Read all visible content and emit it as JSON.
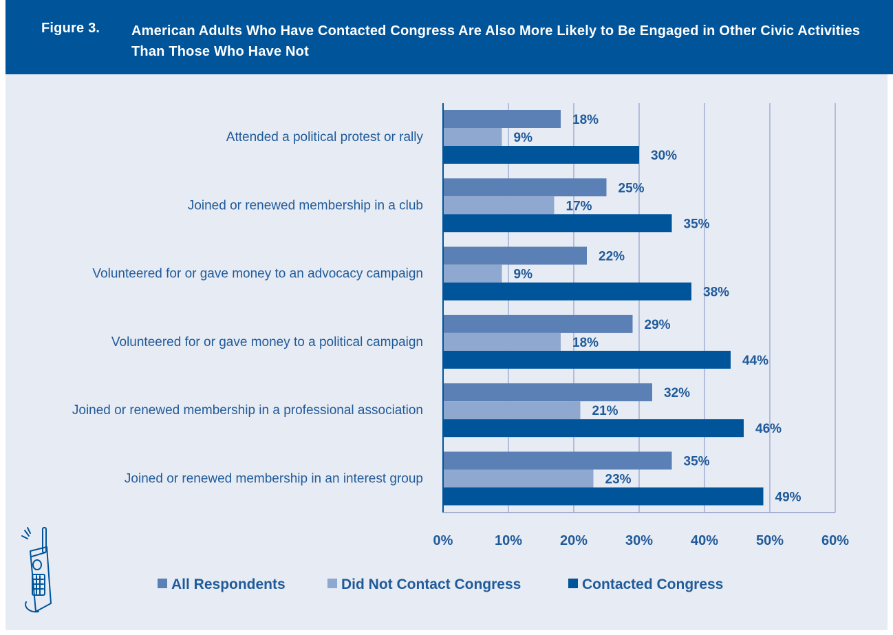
{
  "figure": {
    "label": "Figure 3.",
    "title": "American Adults Who Have Contacted Congress Are Also More Likely to Be Engaged in Other Civic Activities Than Those Who Have Not"
  },
  "colors": {
    "header_bg": "#00549a",
    "panel_bg": "#e7ebf3",
    "text": "#1f5a9a",
    "series": [
      "#5b80b6",
      "#8fa8d0",
      "#00549a"
    ]
  },
  "icons": [
    "phone-icon"
  ],
  "chart_data": {
    "type": "bar",
    "orientation": "horizontal",
    "categories": [
      "Attended a political protest or rally",
      "Joined or renewed membership in a club",
      "Volunteered for or gave money to an advocacy campaign",
      "Volunteered for or gave money to a political campaign",
      "Joined or renewed membership in a professional association",
      "Joined or renewed membership in an interest group"
    ],
    "series": [
      {
        "name": "All Respondents",
        "values": [
          18,
          25,
          22,
          29,
          32,
          35
        ],
        "labels": [
          "18%",
          "25%",
          "22%",
          "29%",
          "32%",
          "35%"
        ]
      },
      {
        "name": "Did Not Contact Congress",
        "values": [
          9,
          17,
          9,
          18,
          21,
          23
        ],
        "labels": [
          "9%",
          "17%",
          "9%",
          "18%",
          "21%",
          "23%"
        ]
      },
      {
        "name": "Contacted Congress",
        "values": [
          30,
          35,
          38,
          44,
          46,
          49
        ],
        "labels": [
          "30%",
          "35%",
          "38%",
          "44%",
          "46%",
          "49%"
        ]
      }
    ],
    "xlim": [
      0,
      60
    ],
    "ticks": [
      0,
      10,
      20,
      30,
      40,
      50,
      60
    ],
    "tick_labels": [
      "0%",
      "10%",
      "20%",
      "30%",
      "40%",
      "50%",
      "60%"
    ],
    "grid": true,
    "legend_position": "bottom"
  }
}
